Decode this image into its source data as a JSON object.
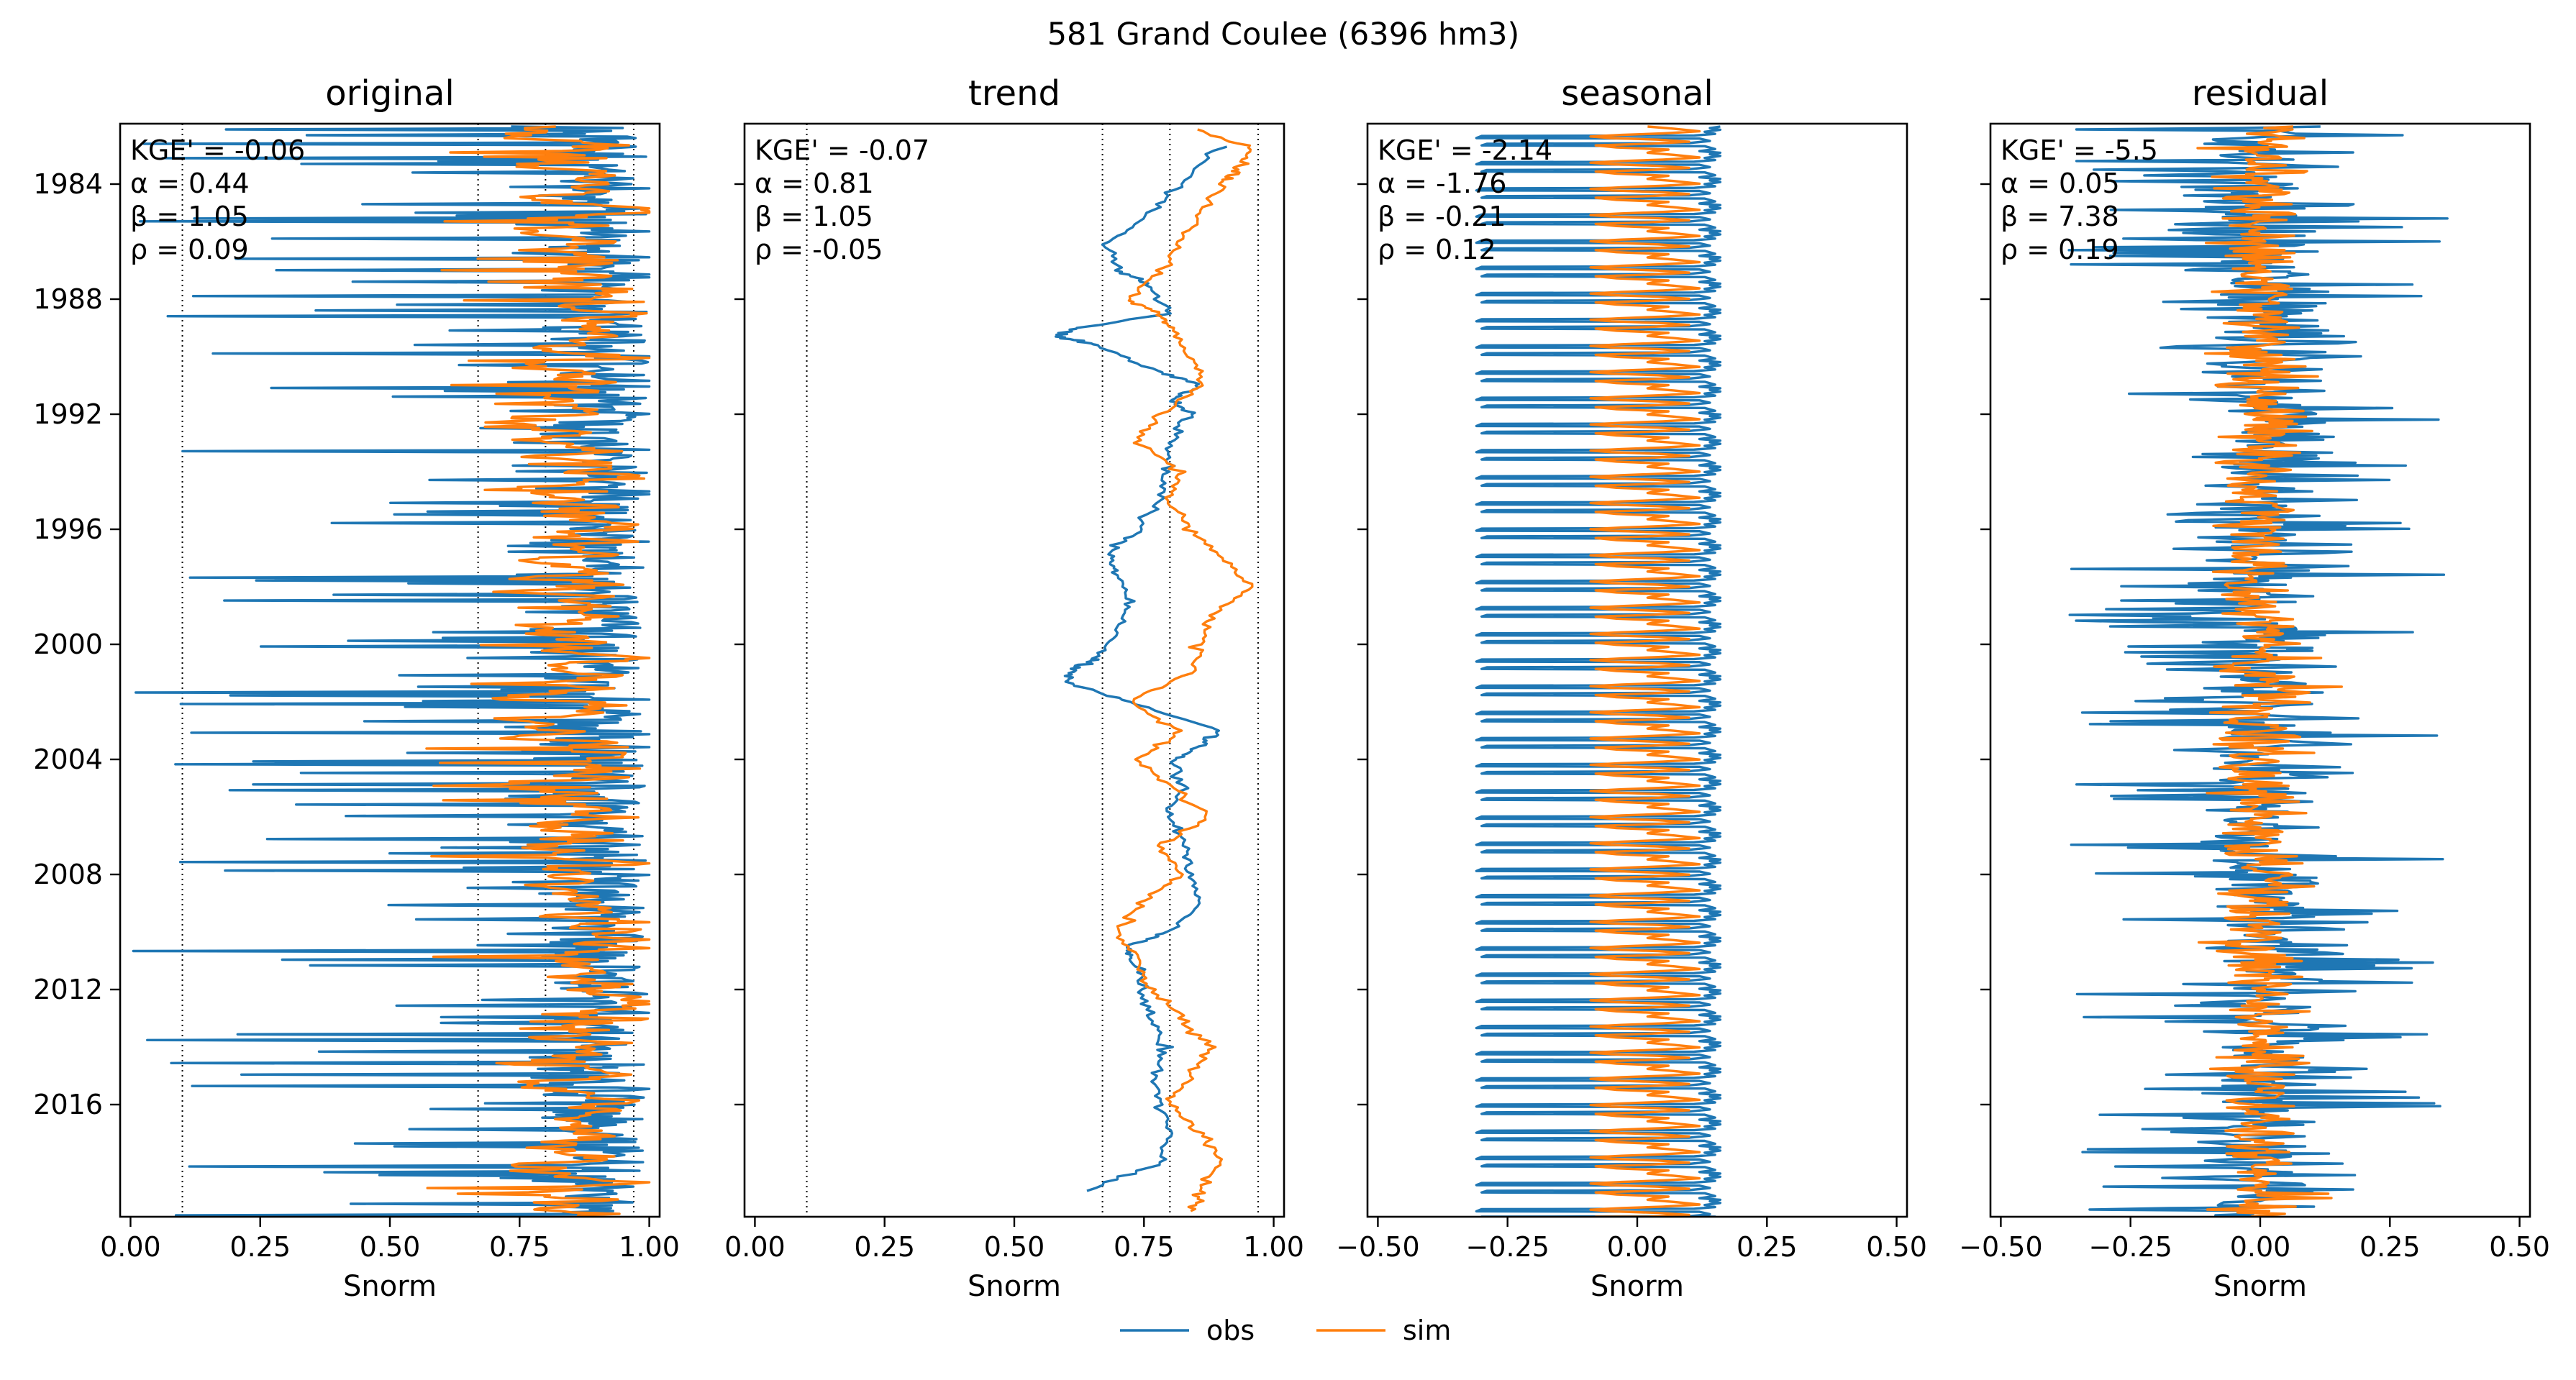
{
  "figure": {
    "suptitle": "581  Grand Coulee (6396 hm3)",
    "legend": [
      {
        "label": "obs",
        "color": "#1f77b4"
      },
      {
        "label": "sim",
        "color": "#ff7f0e"
      }
    ]
  },
  "colors": {
    "obs": "#1f77b4",
    "sim": "#ff7f0e",
    "axes": "#000000",
    "refline": "#000000"
  },
  "chart_data": [
    {
      "type": "line",
      "title": "original",
      "xlabel": "Snorm",
      "ylabel": "",
      "xlim": [
        -0.02,
        1.02
      ],
      "ylim": [
        2019.9,
        1981.9
      ],
      "xticks": [
        0.0,
        0.25,
        0.5,
        0.75,
        1.0
      ],
      "xtick_labels": [
        "0.00",
        "0.25",
        "0.50",
        "0.75",
        "1.00"
      ],
      "yticks": [
        1984,
        1988,
        1992,
        1996,
        2000,
        2004,
        2008,
        2012,
        2016
      ],
      "ytick_labels": [
        "1984",
        "1988",
        "1992",
        "1996",
        "2000",
        "2004",
        "2008",
        "2012",
        "2016"
      ],
      "ref_lines_x": [
        0.1,
        0.67,
        0.8,
        0.97
      ],
      "stats": [
        "KGE' = -0.06",
        "α = 0.44",
        "β = 1.05",
        "ρ = 0.09"
      ],
      "series": [
        {
          "name": "obs",
          "y_start": 1982.0,
          "y_end": 2019.9,
          "profile": "original_obs",
          "points": 760,
          "seed": 11
        },
        {
          "name": "sim",
          "y_start": 1982.0,
          "y_end": 2019.9,
          "profile": "original_sim",
          "points": 760,
          "seed": 12
        }
      ]
    },
    {
      "type": "line",
      "title": "trend",
      "xlabel": "Snorm",
      "ylabel": "",
      "xlim": [
        -0.02,
        1.02
      ],
      "ylim": [
        2019.9,
        1981.9
      ],
      "xticks": [
        0.0,
        0.25,
        0.5,
        0.75,
        1.0
      ],
      "xtick_labels": [
        "0.00",
        "0.25",
        "0.50",
        "0.75",
        "1.00"
      ],
      "yticks": [
        1984,
        1988,
        1992,
        1996,
        2000,
        2004,
        2008,
        2012,
        2016
      ],
      "ytick_labels": [
        "",
        "",
        "",
        "",
        "",
        "",
        "",
        "",
        ""
      ],
      "ref_lines_x": [
        0.1,
        0.67,
        0.8,
        0.97
      ],
      "stats": [
        "KGE' = -0.07",
        "α = 0.81",
        "β = 1.05",
        "ρ = -0.05"
      ],
      "series": [
        {
          "name": "obs",
          "y_start": 1982.7,
          "y_end": 2019.0,
          "keypoints": [
            [
              1982.7,
              0.9
            ],
            [
              1984.0,
              0.82
            ],
            [
              1985.0,
              0.76
            ],
            [
              1986.0,
              0.68
            ],
            [
              1987.0,
              0.7
            ],
            [
              1987.5,
              0.76
            ],
            [
              1988.5,
              0.8
            ],
            [
              1989.0,
              0.62
            ],
            [
              1989.3,
              0.58
            ],
            [
              1989.6,
              0.66
            ],
            [
              1990.5,
              0.78
            ],
            [
              1991.0,
              0.86
            ],
            [
              1991.5,
              0.8
            ],
            [
              1992.0,
              0.84
            ],
            [
              1993.0,
              0.8
            ],
            [
              1994.0,
              0.79
            ],
            [
              1995.0,
              0.78
            ],
            [
              1996.0,
              0.74
            ],
            [
              1996.8,
              0.68
            ],
            [
              1997.5,
              0.7
            ],
            [
              1998.5,
              0.72
            ],
            [
              1999.5,
              0.7
            ],
            [
              2000.5,
              0.66
            ],
            [
              2000.8,
              0.62
            ],
            [
              2001.3,
              0.6
            ],
            [
              2002.0,
              0.72
            ],
            [
              2003.0,
              0.9
            ],
            [
              2003.5,
              0.86
            ],
            [
              2004.0,
              0.81
            ],
            [
              2005.0,
              0.82
            ],
            [
              2006.0,
              0.8
            ],
            [
              2007.0,
              0.83
            ],
            [
              2008.0,
              0.84
            ],
            [
              2009.0,
              0.86
            ],
            [
              2010.0,
              0.8
            ],
            [
              2010.5,
              0.72
            ],
            [
              2011.0,
              0.73
            ],
            [
              2012.0,
              0.75
            ],
            [
              2013.0,
              0.76
            ],
            [
              2014.0,
              0.79
            ],
            [
              2015.0,
              0.77
            ],
            [
              2016.0,
              0.78
            ],
            [
              2017.0,
              0.8
            ],
            [
              2018.0,
              0.78
            ],
            [
              2019.0,
              0.64
            ]
          ]
        },
        {
          "name": "sim",
          "y_start": 1982.1,
          "y_end": 2019.7,
          "keypoints": [
            [
              1982.1,
              0.86
            ],
            [
              1982.8,
              0.96
            ],
            [
              1983.5,
              0.93
            ],
            [
              1984.0,
              0.9
            ],
            [
              1985.0,
              0.86
            ],
            [
              1986.0,
              0.82
            ],
            [
              1987.0,
              0.78
            ],
            [
              1988.0,
              0.72
            ],
            [
              1988.5,
              0.78
            ],
            [
              1989.0,
              0.8
            ],
            [
              1990.0,
              0.84
            ],
            [
              1991.0,
              0.86
            ],
            [
              1992.0,
              0.78
            ],
            [
              1993.0,
              0.74
            ],
            [
              1994.0,
              0.82
            ],
            [
              1995.0,
              0.8
            ],
            [
              1996.0,
              0.84
            ],
            [
              1997.0,
              0.9
            ],
            [
              1998.0,
              0.96
            ],
            [
              1999.0,
              0.88
            ],
            [
              2000.0,
              0.86
            ],
            [
              2001.0,
              0.84
            ],
            [
              2002.0,
              0.72
            ],
            [
              2003.0,
              0.82
            ],
            [
              2004.0,
              0.74
            ],
            [
              2005.0,
              0.8
            ],
            [
              2006.0,
              0.88
            ],
            [
              2007.0,
              0.78
            ],
            [
              2008.0,
              0.82
            ],
            [
              2009.0,
              0.74
            ],
            [
              2010.0,
              0.7
            ],
            [
              2011.0,
              0.74
            ],
            [
              2012.0,
              0.76
            ],
            [
              2013.0,
              0.82
            ],
            [
              2014.0,
              0.88
            ],
            [
              2015.0,
              0.84
            ],
            [
              2016.0,
              0.8
            ],
            [
              2017.0,
              0.86
            ],
            [
              2018.0,
              0.9
            ],
            [
              2019.0,
              0.86
            ],
            [
              2019.7,
              0.84
            ]
          ]
        }
      ]
    },
    {
      "type": "line",
      "title": "seasonal",
      "xlabel": "Snorm",
      "ylabel": "",
      "xlim": [
        -0.52,
        0.52
      ],
      "ylim": [
        2019.9,
        1981.9
      ],
      "xticks": [
        -0.5,
        -0.25,
        0.0,
        0.25,
        0.5
      ],
      "xtick_labels": [
        "−0.50",
        "−0.25",
        "0.00",
        "0.25",
        "0.50"
      ],
      "yticks": [
        1984,
        1988,
        1992,
        1996,
        2000,
        2004,
        2008,
        2012,
        2016
      ],
      "ytick_labels": [
        "",
        "",
        "",
        "",
        "",
        "",
        "",
        "",
        ""
      ],
      "ref_lines_x": [],
      "stats": [
        "KGE' = -2.14",
        "α = -1.76",
        "β = -0.21",
        "ρ = 0.12"
      ],
      "series": [
        {
          "name": "obs",
          "y_start": 1982.0,
          "y_end": 2019.9,
          "profile": "seasonal_obs",
          "period": 0.91
        },
        {
          "name": "sim",
          "y_start": 1982.0,
          "y_end": 2019.9,
          "profile": "seasonal_sim",
          "period": 0.91
        }
      ]
    },
    {
      "type": "line",
      "title": "residual",
      "xlabel": "Snorm",
      "ylabel": "",
      "xlim": [
        -0.52,
        0.52
      ],
      "ylim": [
        2019.9,
        1981.9
      ],
      "xticks": [
        -0.5,
        -0.25,
        0.0,
        0.25,
        0.5
      ],
      "xtick_labels": [
        "−0.50",
        "−0.25",
        "0.00",
        "0.25",
        "0.50"
      ],
      "yticks": [
        1984,
        1988,
        1992,
        1996,
        2000,
        2004,
        2008,
        2012,
        2016
      ],
      "ytick_labels": [
        "",
        "",
        "",
        "",
        "",
        "",
        "",
        "",
        ""
      ],
      "ref_lines_x": [],
      "stats": [
        "KGE' = -5.5",
        "α = 0.05",
        "β = 7.38",
        "ρ = 0.19"
      ],
      "series": [
        {
          "name": "obs",
          "y_start": 1982.0,
          "y_end": 2019.9,
          "profile": "residual_obs",
          "points": 760,
          "seed": 41
        },
        {
          "name": "sim",
          "y_start": 1982.0,
          "y_end": 2019.9,
          "profile": "residual_sim",
          "points": 760,
          "seed": 42
        }
      ]
    }
  ]
}
